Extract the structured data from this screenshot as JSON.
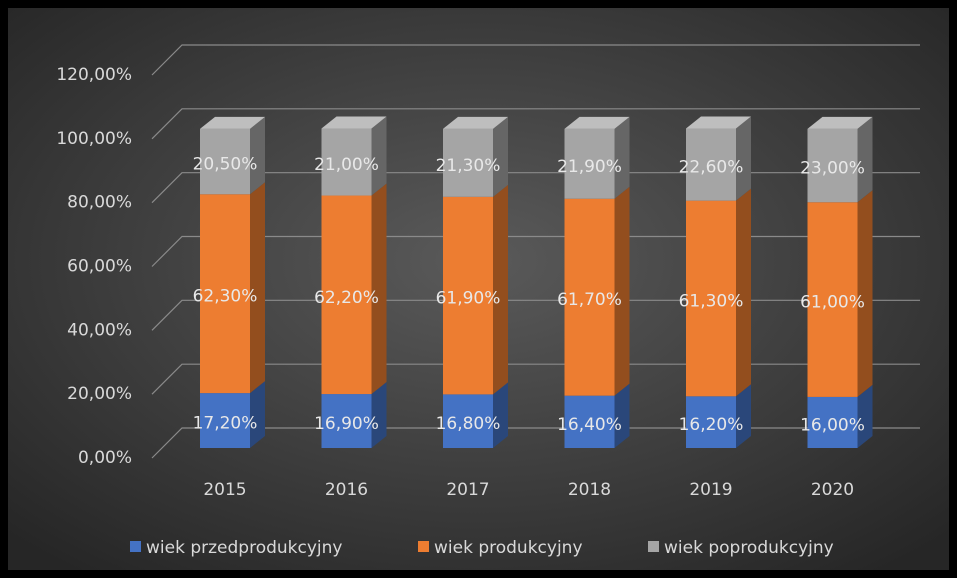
{
  "chart_data": {
    "type": "bar3d_stacked",
    "categories": [
      "2015",
      "2016",
      "2017",
      "2018",
      "2019",
      "2020"
    ],
    "series": [
      {
        "name": "wiek przedprodukcyjny",
        "color": "#4472c4",
        "values": [
          17.2,
          16.9,
          16.8,
          16.4,
          16.2,
          16.0
        ],
        "value_labels": [
          "17,20%",
          "16,90%",
          "16,80%",
          "16,40%",
          "16,20%",
          "16,00%"
        ]
      },
      {
        "name": "wiek produkcyjny",
        "color": "#ed7d31",
        "values": [
          62.3,
          62.2,
          61.9,
          61.7,
          61.3,
          61.0
        ],
        "value_labels": [
          "62,30%",
          "62,20%",
          "61,90%",
          "61,70%",
          "61,30%",
          "61,00%"
        ]
      },
      {
        "name": "wiek poprodukcyjny",
        "color": "#a5a5a5",
        "values": [
          20.5,
          21.0,
          21.3,
          21.9,
          22.6,
          23.0
        ],
        "value_labels": [
          "20,50%",
          "21,00%",
          "21,30%",
          "21,90%",
          "22,60%",
          "23,00%"
        ]
      }
    ],
    "ylim": [
      0,
      120
    ],
    "yticks": [
      {
        "value": 0,
        "label": "0,00%"
      },
      {
        "value": 20,
        "label": "20,00%"
      },
      {
        "value": 40,
        "label": "40,00%"
      },
      {
        "value": 60,
        "label": "60,00%"
      },
      {
        "value": 80,
        "label": "80,00%"
      },
      {
        "value": 100,
        "label": "100,00%"
      },
      {
        "value": 120,
        "label": "120,00%"
      }
    ],
    "grid": true,
    "legend": "bottom"
  }
}
